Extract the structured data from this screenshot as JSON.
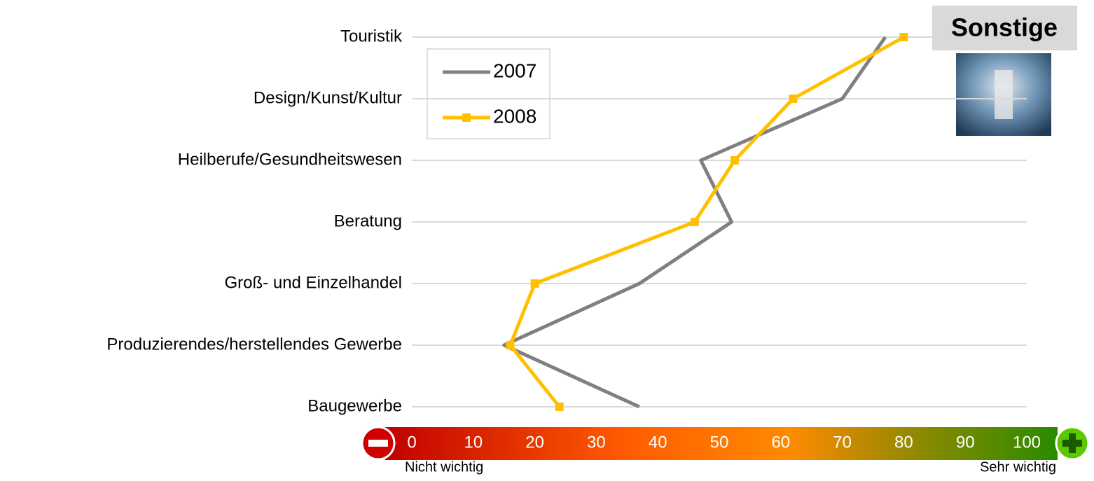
{
  "chart_data": {
    "type": "line",
    "orientation": "horizontal",
    "badge": "Sonstige",
    "categories": [
      "Touristik",
      "Design/Kunst/Kultur",
      "Heilberufe/Gesundheitswesen",
      "Beratung",
      "Groß- und Einzelhandel",
      "Produzierendes/herstellendes Gewerbe",
      "Baugewerbe"
    ],
    "series": [
      {
        "name": "2007",
        "color": "#808080",
        "marker": "none",
        "values": [
          77,
          70,
          47,
          52,
          37,
          15,
          37
        ]
      },
      {
        "name": "2008",
        "color": "#ffc000",
        "marker": "square",
        "values": [
          80,
          62,
          52.5,
          46,
          20,
          16,
          24
        ]
      }
    ],
    "xlim": [
      0,
      100
    ],
    "xticks": [
      0,
      10,
      20,
      30,
      40,
      50,
      60,
      70,
      80,
      90,
      100
    ],
    "x_low_label": "Nicht wichtig",
    "x_high_label": "Sehr wichtig",
    "grid": true
  }
}
